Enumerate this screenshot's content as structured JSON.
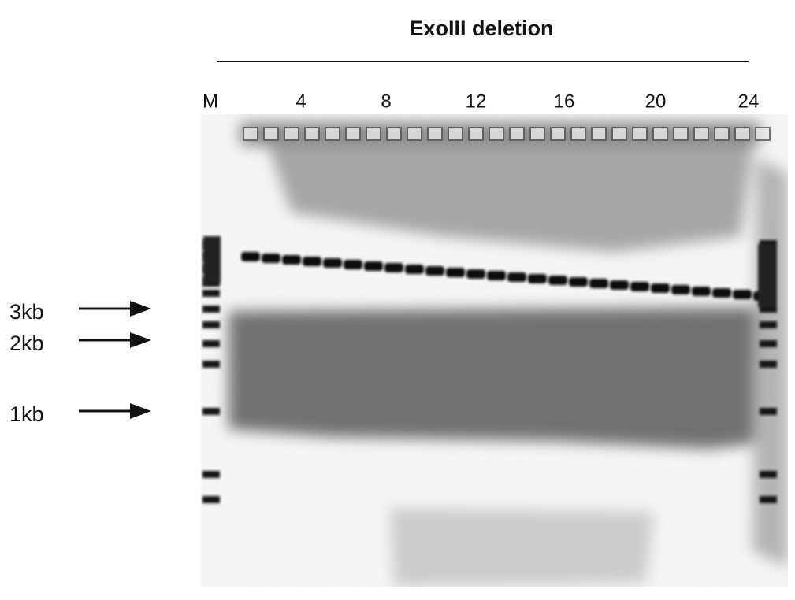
{
  "title": "ExoIII deletion",
  "lane_labels": [
    "M",
    "4",
    "8",
    "12",
    "16",
    "20",
    "24"
  ],
  "size_markers": [
    "3kb",
    "2kb",
    "1kb"
  ]
}
